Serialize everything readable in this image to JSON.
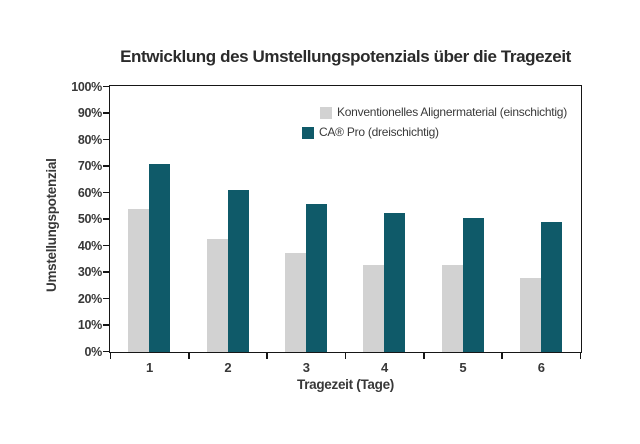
{
  "chart_data": {
    "type": "bar",
    "title": "Entwicklung des Umstellungspotenzials über die Tragezeit",
    "xlabel": "Tragezeit (Tage)",
    "ylabel": "Umstellungspotenzial",
    "categories": [
      "1",
      "2",
      "3",
      "4",
      "5",
      "6"
    ],
    "series": [
      {
        "name": "Konventionelles Alignermaterial (einschichtig)",
        "color": "#d2d2d2",
        "values": [
          54,
          42.5,
          37.5,
          33,
          33,
          28
        ]
      },
      {
        "name": "CA® Pro (dreischichtig)",
        "color": "#0f5a69",
        "values": [
          71,
          61,
          56,
          52.5,
          50.5,
          49
        ]
      }
    ],
    "ylim": [
      0,
      100
    ],
    "yticks": [
      {
        "value": 0,
        "label": "0%"
      },
      {
        "value": 10,
        "label": "10%"
      },
      {
        "value": 20,
        "label": "20%"
      },
      {
        "value": 30,
        "label": "30%"
      },
      {
        "value": 40,
        "label": "40%"
      },
      {
        "value": 50,
        "label": "50%"
      },
      {
        "value": 60,
        "label": "60%"
      },
      {
        "value": 70,
        "label": "70%"
      },
      {
        "value": 80,
        "label": "80%"
      },
      {
        "value": 90,
        "label": "90%"
      },
      {
        "value": 100,
        "label": "100%"
      }
    ],
    "grid": false,
    "legend_position": "inside-top-right",
    "axis_color": "#161616",
    "background": "#ffffff"
  }
}
